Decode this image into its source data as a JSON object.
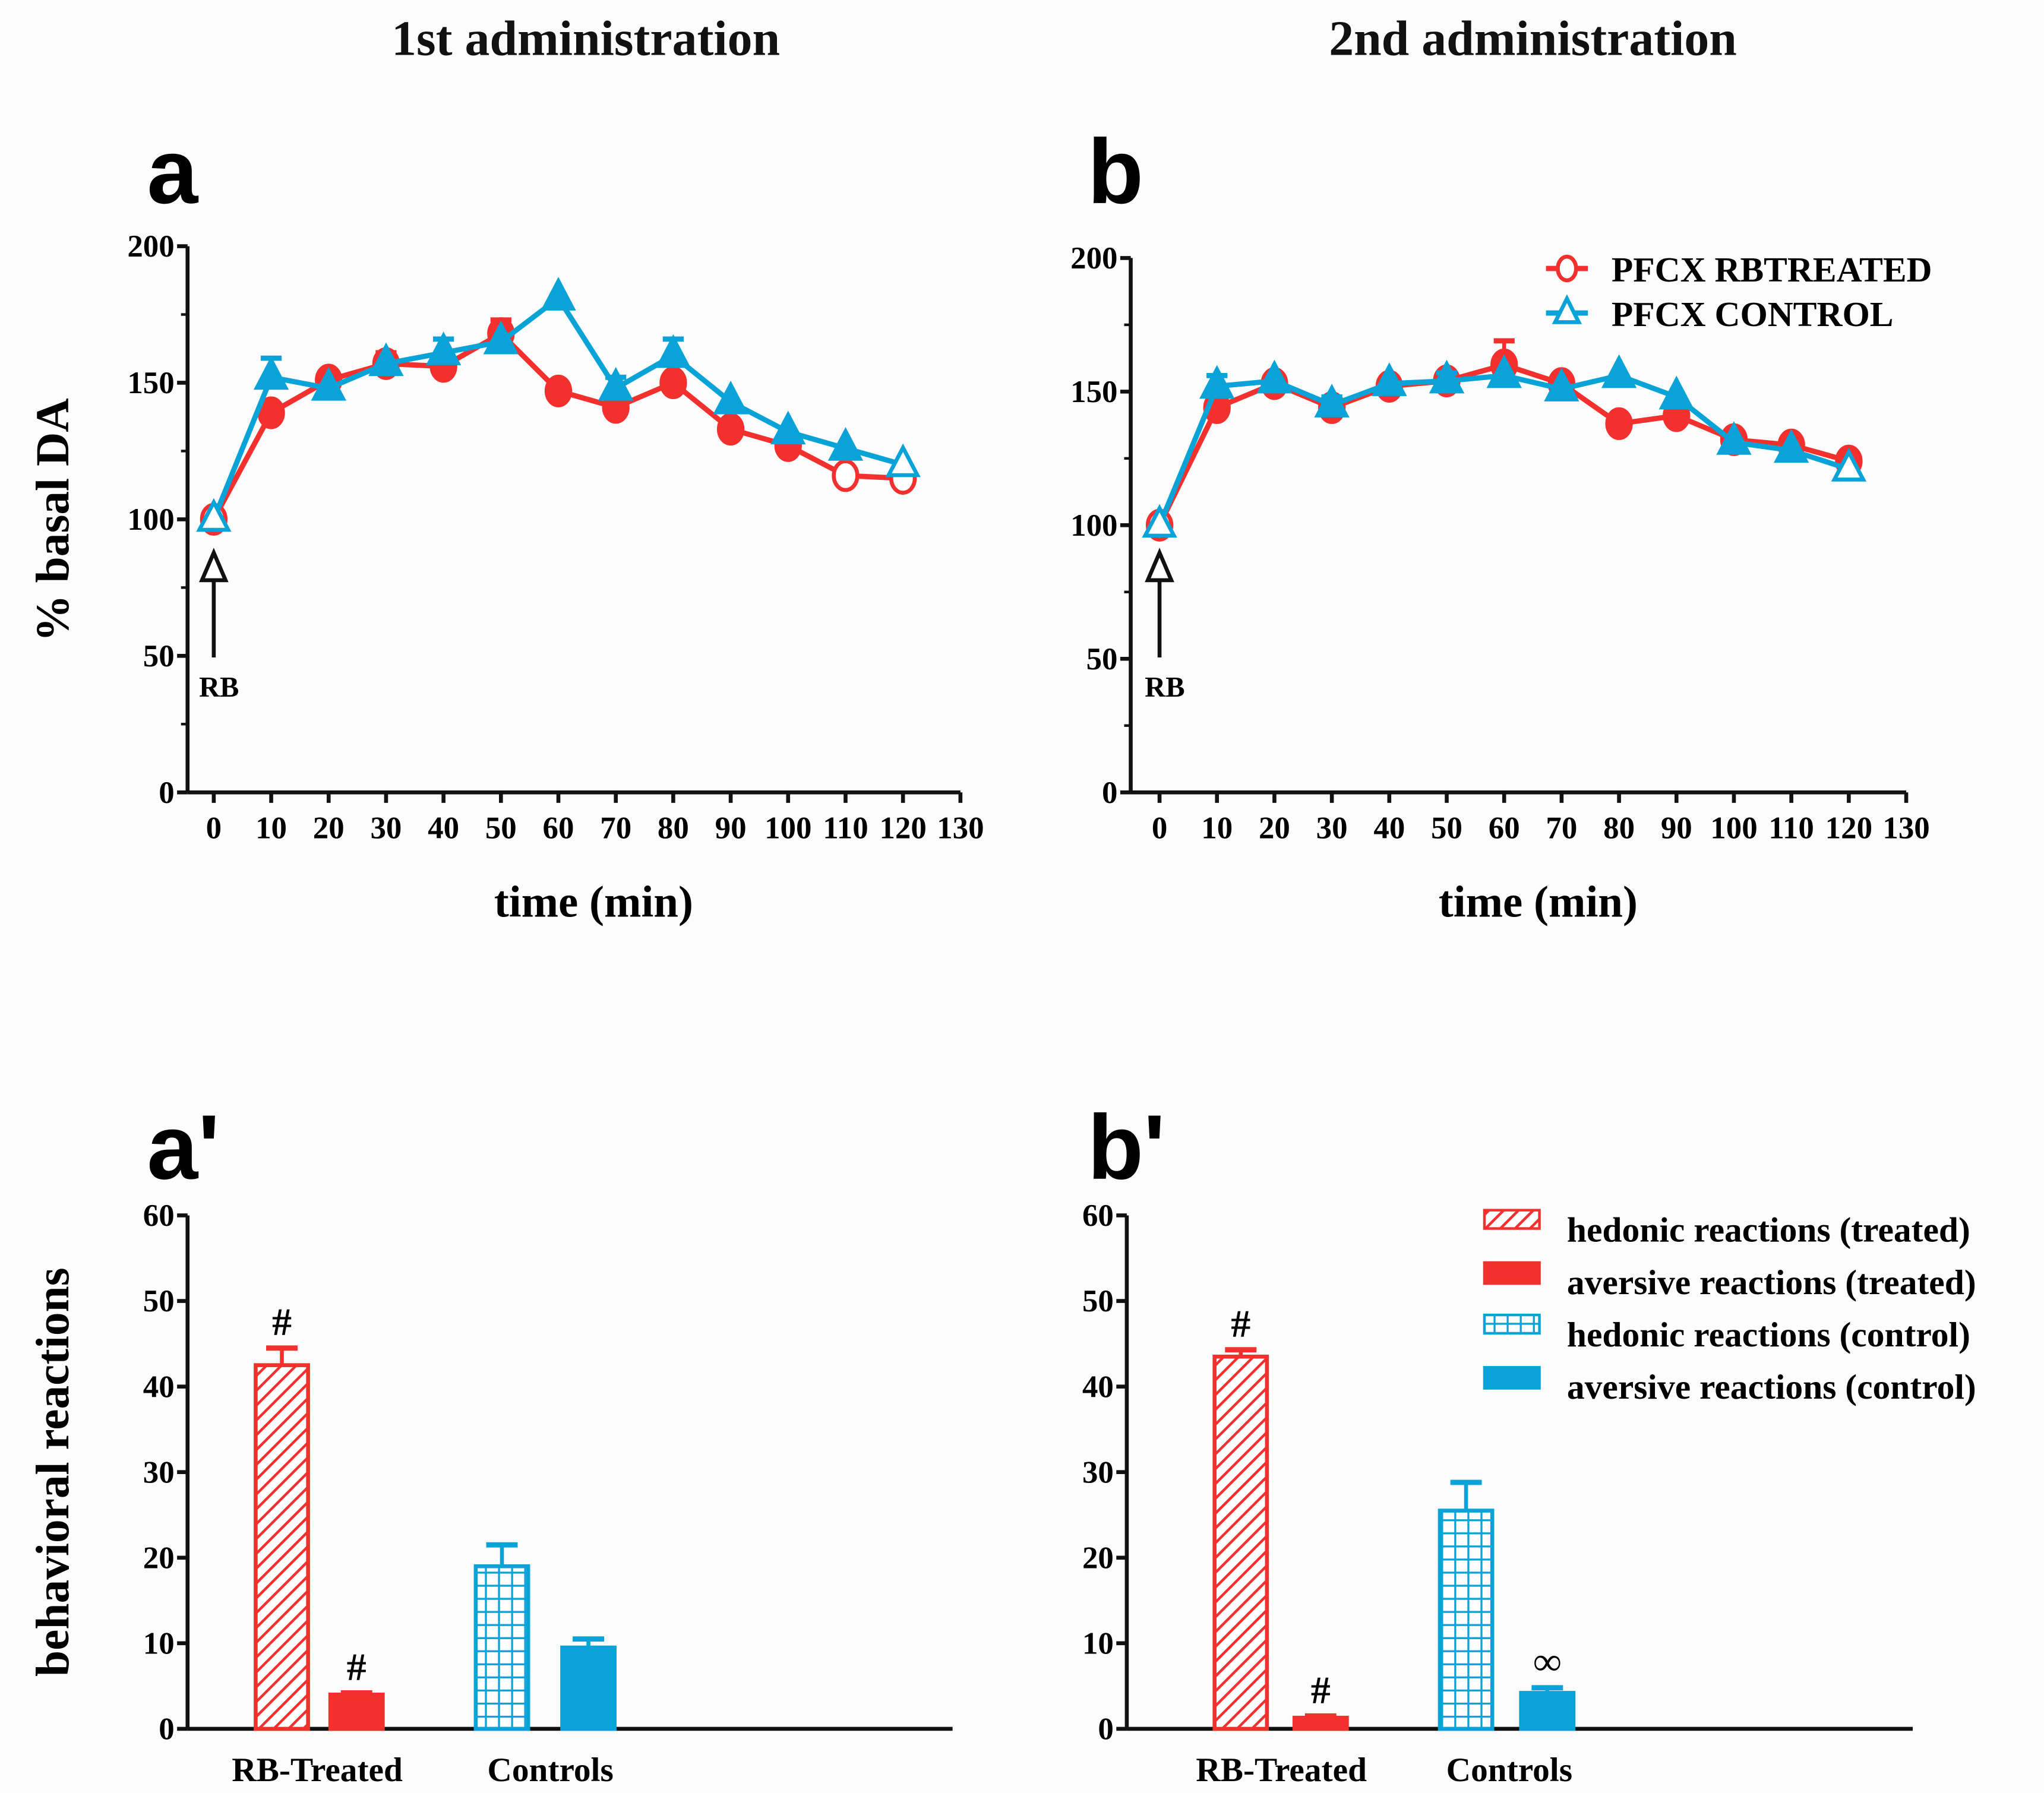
{
  "colors": {
    "treated": "#f2302d",
    "control": "#0aa3d8",
    "axis": "#111111"
  },
  "chart_data": [
    {
      "id": "a",
      "type": "line",
      "column_title": "1st administration",
      "panel_label": "a",
      "xlabel": "time (min)",
      "ylabel": "% basal DA",
      "xlim": [
        0,
        130
      ],
      "ylim": [
        0,
        200
      ],
      "xticks": [
        0,
        10,
        20,
        30,
        40,
        50,
        60,
        70,
        80,
        90,
        100,
        110,
        120,
        130
      ],
      "yticks": [
        0,
        50,
        100,
        150,
        200
      ],
      "annotation": "RB",
      "x": [
        0,
        10,
        20,
        30,
        40,
        50,
        60,
        70,
        80,
        90,
        100,
        110,
        120
      ],
      "series": [
        {
          "name": "PFCX RBTREATED",
          "values": [
            100,
            139,
            151,
            157,
            156,
            168,
            147,
            141,
            150,
            133,
            127,
            116,
            115
          ],
          "errors": [
            0,
            0,
            0,
            4,
            0,
            5,
            0,
            0,
            0,
            0,
            0,
            0,
            0
          ]
        },
        {
          "name": "PFCX CONTROL",
          "values": [
            100,
            152,
            148,
            157,
            161,
            165,
            181,
            148,
            160,
            143,
            132,
            126,
            120
          ],
          "errors": [
            0,
            7,
            0,
            0,
            5,
            0,
            0,
            4,
            6,
            0,
            0,
            0,
            0
          ]
        }
      ]
    },
    {
      "id": "b",
      "type": "line",
      "column_title": "2nd administration",
      "panel_label": "b",
      "xlabel": "time (min)",
      "ylabel": "",
      "xlim": [
        0,
        130
      ],
      "ylim": [
        0,
        200
      ],
      "xticks": [
        0,
        10,
        20,
        30,
        40,
        50,
        60,
        70,
        80,
        90,
        100,
        110,
        120,
        130
      ],
      "yticks": [
        0,
        50,
        100,
        150,
        200
      ],
      "annotation": "RB",
      "legend": "top-right",
      "x": [
        0,
        10,
        20,
        30,
        40,
        50,
        60,
        70,
        80,
        90,
        100,
        110,
        120
      ],
      "series": [
        {
          "name": "PFCX RBTREATED",
          "values": [
            100,
            144,
            153,
            144,
            152,
            154,
            160,
            153,
            138,
            141,
            132,
            130,
            124
          ],
          "errors": [
            0,
            0,
            3,
            0,
            0,
            0,
            9,
            0,
            0,
            0,
            0,
            0,
            0
          ]
        },
        {
          "name": "PFCX CONTROL",
          "values": [
            100,
            152,
            154,
            145,
            153,
            154,
            156,
            151,
            156,
            148,
            131,
            128,
            121
          ],
          "errors": [
            0,
            4,
            0,
            3,
            0,
            3,
            0,
            0,
            0,
            0,
            0,
            0,
            0
          ]
        }
      ]
    },
    {
      "id": "a2",
      "type": "bar",
      "panel_label": "a'",
      "ylabel": "behavioral reactions",
      "ylim": [
        0,
        60
      ],
      "yticks": [
        0,
        10,
        20,
        30,
        40,
        50,
        60
      ],
      "categories": [
        "RB-Treated",
        "Controls"
      ],
      "bars": [
        {
          "series": "hedonic reactions (treated)",
          "value": 42.5,
          "error": 2.0,
          "mark": "#"
        },
        {
          "series": "aversive reactions (treated)",
          "value": 4.0,
          "error": 0.2,
          "mark": "#"
        },
        {
          "series": "hedonic reactions (control)",
          "value": 19.0,
          "error": 2.5,
          "mark": ""
        },
        {
          "series": "aversive reactions (control)",
          "value": 9.5,
          "error": 1.0,
          "mark": ""
        }
      ]
    },
    {
      "id": "b2",
      "type": "bar",
      "panel_label": "b'",
      "ylabel": "",
      "ylim": [
        0,
        60
      ],
      "yticks": [
        0,
        10,
        20,
        30,
        40,
        50,
        60
      ],
      "categories": [
        "RB-Treated",
        "Controls"
      ],
      "legend": "top-right",
      "bars": [
        {
          "series": "hedonic reactions (treated)",
          "value": 43.5,
          "error": 0.8,
          "mark": "#"
        },
        {
          "series": "aversive reactions (treated)",
          "value": 1.3,
          "error": 0.2,
          "mark": "#"
        },
        {
          "series": "hedonic reactions (control)",
          "value": 25.5,
          "error": 3.3,
          "mark": ""
        },
        {
          "series": "aversive reactions (control)",
          "value": 4.2,
          "error": 0.6,
          "mark": "∞"
        }
      ]
    }
  ]
}
